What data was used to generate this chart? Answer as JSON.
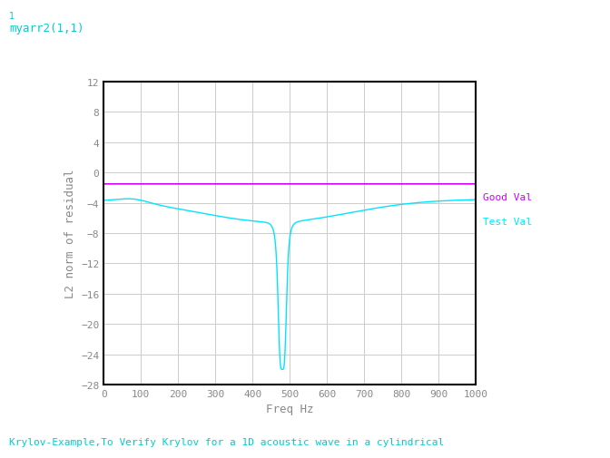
{
  "title_top_left": "myarr2(1,1)",
  "title_index": "1",
  "bottom_text": "Krylov-Example,To Verify Krylov for a 1D acoustic wave in a cylindrical",
  "xlabel": "Freq Hz",
  "ylabel": "L2 norm of residual",
  "xlim": [
    0,
    1000
  ],
  "ylim": [
    -28,
    12
  ],
  "yticks": [
    -28,
    -24,
    -20,
    -16,
    -12,
    -8,
    -4,
    0,
    4,
    8,
    12
  ],
  "xticks": [
    0,
    100,
    200,
    300,
    400,
    500,
    600,
    700,
    800,
    900,
    1000
  ],
  "good_val_level": -1.5,
  "good_val_color": "#cc00ff",
  "test_val_color": "#00e5ff",
  "bg_color": "#ffffff",
  "plot_bg_color": "#ffffff",
  "grid_color": "#cccccc",
  "legend_good": "Good Val",
  "legend_test": "Test Val",
  "font_color": "#00cccc",
  "label_color": "#888888",
  "spine_color": "#000000"
}
